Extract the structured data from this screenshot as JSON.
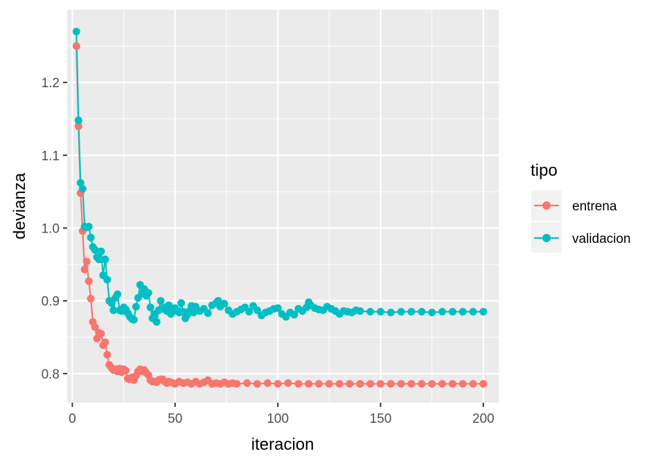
{
  "chart_data": {
    "type": "line",
    "xlabel": "iteracion",
    "ylabel": "devianza",
    "xlim": [
      -2.5,
      207.5
    ],
    "ylim": [
      0.76,
      1.3
    ],
    "x_ticks": [
      0,
      50,
      100,
      150,
      200
    ],
    "y_ticks": [
      0.8,
      0.9,
      1.0,
      1.1,
      1.2
    ],
    "x_tick_labels": [
      "0",
      "50",
      "100",
      "150",
      "200"
    ],
    "y_tick_labels": [
      "0.8",
      "0.9",
      "1.0",
      "1.1",
      "1.2"
    ],
    "grid": true,
    "legend": {
      "title": "tipo",
      "position": "right",
      "entries": [
        "entrena",
        "validacion"
      ]
    },
    "series": [
      {
        "name": "entrena",
        "color": "#F8766D",
        "points": [
          [
            2,
            1.25
          ],
          [
            3,
            1.14
          ],
          [
            4,
            1.048
          ],
          [
            5,
            0.996
          ],
          [
            6,
            0.943
          ],
          [
            7,
            0.954
          ],
          [
            8,
            0.927
          ],
          [
            9,
            0.903
          ],
          [
            10,
            0.871
          ],
          [
            11,
            0.864
          ],
          [
            12,
            0.848
          ],
          [
            13,
            0.856
          ],
          [
            14,
            0.855
          ],
          [
            15,
            0.839
          ],
          [
            16,
            0.843
          ],
          [
            17,
            0.826
          ],
          [
            18,
            0.812
          ],
          [
            19,
            0.808
          ],
          [
            20,
            0.805
          ],
          [
            21,
            0.806
          ],
          [
            22,
            0.803
          ],
          [
            23,
            0.807
          ],
          [
            24,
            0.802
          ],
          [
            25,
            0.806
          ],
          [
            26,
            0.804
          ],
          [
            27,
            0.793
          ],
          [
            28,
            0.792
          ],
          [
            29,
            0.795
          ],
          [
            30,
            0.791
          ],
          [
            31,
            0.797
          ],
          [
            32,
            0.803
          ],
          [
            33,
            0.806
          ],
          [
            34,
            0.803
          ],
          [
            35,
            0.805
          ],
          [
            36,
            0.801
          ],
          [
            37,
            0.798
          ],
          [
            38,
            0.791
          ],
          [
            39,
            0.789
          ],
          [
            40,
            0.789
          ],
          [
            41,
            0.788
          ],
          [
            42,
            0.791
          ],
          [
            43,
            0.792
          ],
          [
            44,
            0.792
          ],
          [
            45,
            0.789
          ],
          [
            46,
            0.787
          ],
          [
            47,
            0.789
          ],
          [
            48,
            0.788
          ],
          [
            49,
            0.787
          ],
          [
            50,
            0.786
          ],
          [
            52,
            0.789
          ],
          [
            54,
            0.787
          ],
          [
            56,
            0.788
          ],
          [
            58,
            0.786
          ],
          [
            60,
            0.789
          ],
          [
            62,
            0.786
          ],
          [
            64,
            0.788
          ],
          [
            66,
            0.791
          ],
          [
            68,
            0.786
          ],
          [
            70,
            0.787
          ],
          [
            72,
            0.786
          ],
          [
            74,
            0.788
          ],
          [
            76,
            0.786
          ],
          [
            78,
            0.787
          ],
          [
            80,
            0.786
          ],
          [
            85,
            0.787
          ],
          [
            90,
            0.786
          ],
          [
            95,
            0.787
          ],
          [
            100,
            0.786
          ],
          [
            105,
            0.787
          ],
          [
            110,
            0.786
          ],
          [
            115,
            0.786
          ],
          [
            120,
            0.786
          ],
          [
            125,
            0.786
          ],
          [
            130,
            0.786
          ],
          [
            135,
            0.786
          ],
          [
            140,
            0.786
          ],
          [
            145,
            0.786
          ],
          [
            150,
            0.786
          ],
          [
            155,
            0.786
          ],
          [
            160,
            0.786
          ],
          [
            165,
            0.786
          ],
          [
            170,
            0.786
          ],
          [
            175,
            0.786
          ],
          [
            180,
            0.786
          ],
          [
            185,
            0.786
          ],
          [
            190,
            0.786
          ],
          [
            195,
            0.786
          ],
          [
            200,
            0.786
          ]
        ]
      },
      {
        "name": "validacion",
        "color": "#00BFC4",
        "points": [
          [
            2,
            1.27
          ],
          [
            3,
            1.148
          ],
          [
            4,
            1.062
          ],
          [
            5,
            1.054
          ],
          [
            6,
            1.002
          ],
          [
            7,
            1.001
          ],
          [
            8,
            1.002
          ],
          [
            9,
            0.987
          ],
          [
            10,
            0.974
          ],
          [
            11,
            0.97
          ],
          [
            12,
            0.96
          ],
          [
            13,
            0.957
          ],
          [
            14,
            0.968
          ],
          [
            15,
            0.935
          ],
          [
            16,
            0.957
          ],
          [
            17,
            0.929
          ],
          [
            18,
            0.9
          ],
          [
            19,
            0.897
          ],
          [
            20,
            0.887
          ],
          [
            21,
            0.904
          ],
          [
            22,
            0.909
          ],
          [
            23,
            0.887
          ],
          [
            24,
            0.886
          ],
          [
            25,
            0.891
          ],
          [
            26,
            0.888
          ],
          [
            27,
            0.883
          ],
          [
            28,
            0.878
          ],
          [
            29,
            0.875
          ],
          [
            30,
            0.874
          ],
          [
            31,
            0.892
          ],
          [
            32,
            0.904
          ],
          [
            33,
            0.922
          ],
          [
            34,
            0.91
          ],
          [
            35,
            0.916
          ],
          [
            36,
            0.907
          ],
          [
            37,
            0.911
          ],
          [
            38,
            0.891
          ],
          [
            39,
            0.876
          ],
          [
            40,
            0.882
          ],
          [
            41,
            0.871
          ],
          [
            42,
            0.887
          ],
          [
            43,
            0.9
          ],
          [
            44,
            0.889
          ],
          [
            45,
            0.891
          ],
          [
            46,
            0.886
          ],
          [
            47,
            0.894
          ],
          [
            48,
            0.882
          ],
          [
            49,
            0.886
          ],
          [
            50,
            0.89
          ],
          [
            51,
            0.886
          ],
          [
            52,
            0.884
          ],
          [
            53,
            0.897
          ],
          [
            54,
            0.885
          ],
          [
            55,
            0.876
          ],
          [
            56,
            0.881
          ],
          [
            57,
            0.886
          ],
          [
            58,
            0.893
          ],
          [
            59,
            0.884
          ],
          [
            60,
            0.892
          ],
          [
            62,
            0.886
          ],
          [
            64,
            0.889
          ],
          [
            66,
            0.883
          ],
          [
            68,
            0.894
          ],
          [
            70,
            0.897
          ],
          [
            71,
            0.9
          ],
          [
            72,
            0.892
          ],
          [
            74,
            0.896
          ],
          [
            76,
            0.887
          ],
          [
            78,
            0.882
          ],
          [
            80,
            0.885
          ],
          [
            82,
            0.888
          ],
          [
            84,
            0.891
          ],
          [
            86,
            0.885
          ],
          [
            88,
            0.893
          ],
          [
            90,
            0.887
          ],
          [
            92,
            0.88
          ],
          [
            94,
            0.884
          ],
          [
            96,
            0.886
          ],
          [
            98,
            0.889
          ],
          [
            100,
            0.89
          ],
          [
            102,
            0.882
          ],
          [
            104,
            0.878
          ],
          [
            106,
            0.884
          ],
          [
            108,
            0.881
          ],
          [
            110,
            0.889
          ],
          [
            112,
            0.886
          ],
          [
            114,
            0.891
          ],
          [
            115,
            0.898
          ],
          [
            116,
            0.894
          ],
          [
            118,
            0.89
          ],
          [
            120,
            0.888
          ],
          [
            122,
            0.887
          ],
          [
            124,
            0.892
          ],
          [
            126,
            0.889
          ],
          [
            128,
            0.886
          ],
          [
            130,
            0.882
          ],
          [
            132,
            0.886
          ],
          [
            134,
            0.885
          ],
          [
            136,
            0.884
          ],
          [
            138,
            0.887
          ],
          [
            140,
            0.886
          ],
          [
            145,
            0.885
          ],
          [
            150,
            0.885
          ],
          [
            155,
            0.884
          ],
          [
            160,
            0.885
          ],
          [
            165,
            0.885
          ],
          [
            170,
            0.885
          ],
          [
            175,
            0.884
          ],
          [
            180,
            0.885
          ],
          [
            185,
            0.885
          ],
          [
            190,
            0.885
          ],
          [
            195,
            0.885
          ],
          [
            200,
            0.885
          ]
        ]
      }
    ]
  }
}
